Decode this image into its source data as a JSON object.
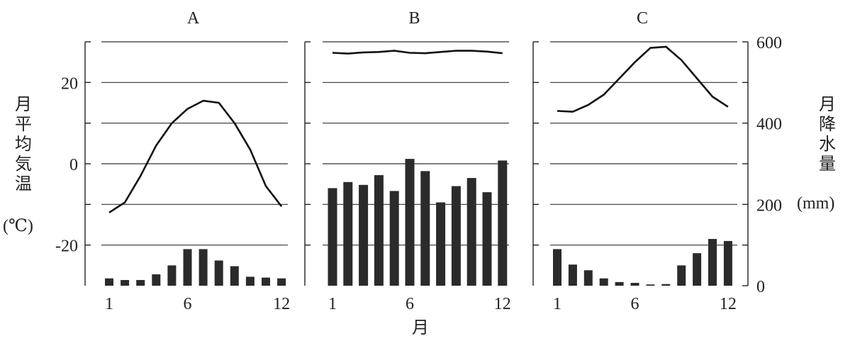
{
  "figure": {
    "panel_titles": [
      "A",
      "B",
      "C"
    ],
    "left_axis_label_chars": [
      "月",
      "平",
      "均",
      "気",
      "温"
    ],
    "left_axis_unit": "(℃)",
    "right_axis_label_chars": [
      "月",
      "降",
      "水",
      "量"
    ],
    "right_axis_unit": "(mm)",
    "x_axis_label": "月",
    "x_tick_labels": [
      "1",
      "6",
      "12"
    ],
    "left_tick_labels": [
      "20",
      "0",
      "-20"
    ],
    "right_tick_labels": [
      "600",
      "400",
      "200",
      "0"
    ]
  },
  "chart_data": [
    {
      "type": "bar+line",
      "title": "A",
      "x": [
        1,
        2,
        3,
        4,
        5,
        6,
        7,
        8,
        9,
        10,
        11,
        12
      ],
      "temperature_c": [
        -12,
        -9.5,
        -3,
        4.5,
        10,
        13.5,
        15.5,
        15,
        10,
        3.5,
        -5.5,
        -10.5
      ],
      "precipitation_mm": [
        18,
        14,
        14,
        28,
        50,
        90,
        90,
        62,
        48,
        22,
        20,
        18
      ],
      "temp_ylim": [
        -30,
        30
      ],
      "precip_ylim": [
        0,
        600
      ]
    },
    {
      "type": "bar+line",
      "title": "B",
      "x": [
        1,
        2,
        3,
        4,
        5,
        6,
        7,
        8,
        9,
        10,
        11,
        12
      ],
      "temperature_c": [
        27.3,
        27.1,
        27.4,
        27.5,
        27.8,
        27.3,
        27.2,
        27.5,
        27.8,
        27.8,
        27.6,
        27.2
      ],
      "precipitation_mm": [
        240,
        255,
        248,
        272,
        233,
        312,
        282,
        205,
        245,
        265,
        230,
        308
      ],
      "temp_ylim": [
        -30,
        30
      ],
      "precip_ylim": [
        0,
        600
      ]
    },
    {
      "type": "bar+line",
      "title": "C",
      "x": [
        1,
        2,
        3,
        4,
        5,
        6,
        7,
        8,
        9,
        10,
        11,
        12
      ],
      "temperature_c": [
        13,
        12.8,
        14.5,
        17,
        21,
        25,
        28.5,
        28.8,
        25.5,
        21,
        16.5,
        14
      ],
      "precipitation_mm": [
        90,
        52,
        38,
        18,
        9,
        7,
        3,
        4,
        50,
        80,
        115,
        110
      ],
      "temp_ylim": [
        -30,
        30
      ],
      "precip_ylim": [
        0,
        600
      ]
    }
  ]
}
